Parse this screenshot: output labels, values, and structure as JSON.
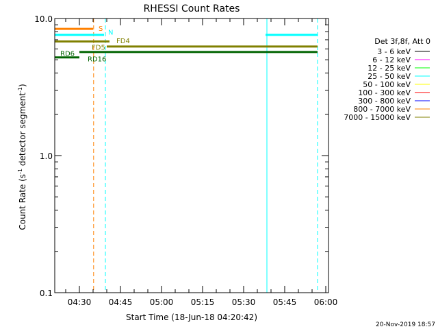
{
  "chart_data": {
    "type": "line",
    "title": "RHESSI Count Rates",
    "xlabel": "Start Time (18-Jun-18 04:20:42)",
    "ylabel_main": "Count Rate (s",
    "ylabel_sup1": "-1",
    "ylabel_mid": " detector segment",
    "ylabel_sup2": "-1",
    "ylabel_end": ")",
    "y_scale": "log",
    "ylim": [
      0.1,
      10.0
    ],
    "y_ticks": [
      {
        "value": 10.0,
        "label": "10.0"
      },
      {
        "value": 1.0,
        "label": "1.0"
      },
      {
        "value": 0.1,
        "label": "0.1"
      }
    ],
    "x_range_min": [
      261,
      361
    ],
    "x_ticks": [
      {
        "t": 270,
        "label": "04:30"
      },
      {
        "t": 285,
        "label": "04:45"
      },
      {
        "t": 300,
        "label": "05:00"
      },
      {
        "t": 315,
        "label": "05:15"
      },
      {
        "t": 330,
        "label": "05:30"
      },
      {
        "t": 345,
        "label": "05:45"
      },
      {
        "t": 360,
        "label": "06:00"
      }
    ],
    "x_minor_step": 5,
    "legend": {
      "header": "Det 3f,8f, Att 0",
      "placement": "right",
      "entries": [
        {
          "label": "3 - 6 keV",
          "color": "#000000"
        },
        {
          "label": "6 - 12 keV",
          "color": "#ff00ff"
        },
        {
          "label": "12 - 25 keV",
          "color": "#00ff00"
        },
        {
          "label": "25 - 50 keV",
          "color": "#00ffff"
        },
        {
          "label": "50 - 100 keV",
          "color": "#ffff00"
        },
        {
          "label": "100 - 300 keV",
          "color": "#ff0000"
        },
        {
          "label": "300 - 800 keV",
          "color": "#0000ff"
        },
        {
          "label": "800 - 7000 keV",
          "color": "#ff8000"
        },
        {
          "label": "7000 - 15000 keV",
          "color": "#808000"
        }
      ]
    },
    "segments": [
      {
        "name": "S",
        "color": "#ff8000",
        "t0": 261,
        "t1": 275,
        "y": 8.4,
        "label": "S",
        "label_t": 277,
        "label_y": 8.5
      },
      {
        "name": "N",
        "color": "#00ffff",
        "t0": 261,
        "t1": 279,
        "y": 7.6,
        "label": "N",
        "label_t": 280.5,
        "label_y": 8.0
      },
      {
        "name": "N-late",
        "color": "#00ffff",
        "t0": 338,
        "t1": 357,
        "y": 7.6,
        "label": "",
        "label_t": 0,
        "label_y": 0
      },
      {
        "name": "FD4",
        "color": "#808000",
        "t0": 261,
        "t1": 281,
        "y": 6.8,
        "label": "FD4",
        "label_t": 283.5,
        "label_y": 6.9
      },
      {
        "name": "FD5",
        "color": "#808000",
        "t0": 280,
        "t1": 357,
        "y": 6.25,
        "label": "FD5",
        "label_t": 274.5,
        "label_y": 6.2
      },
      {
        "name": "RD6",
        "color": "#006400",
        "t0": 261,
        "t1": 270,
        "y": 5.2,
        "label": "RD6",
        "label_t": 263,
        "label_y": 5.6
      },
      {
        "name": "RD16",
        "color": "#006400",
        "t0": 270,
        "t1": 357,
        "y": 5.7,
        "label": "RD16",
        "label_t": 273,
        "label_y": 5.1
      }
    ],
    "vlines": [
      {
        "t": 261,
        "color": "#00ffff",
        "style": "solid"
      },
      {
        "t": 275.2,
        "color": "#ff8000",
        "style": "dashed"
      },
      {
        "t": 279.5,
        "color": "#00ffff",
        "style": "dashed"
      },
      {
        "t": 338.5,
        "color": "#00ffff",
        "style": "solid"
      },
      {
        "t": 357,
        "color": "#00ffff",
        "style": "dashed"
      }
    ]
  },
  "footer": {
    "date": "20-Nov-2019 18:57"
  }
}
